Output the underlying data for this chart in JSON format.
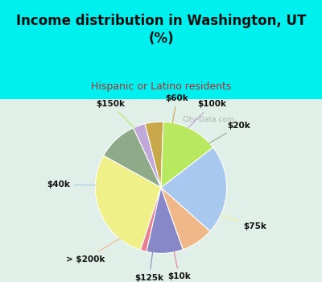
{
  "title": "Income distribution in Washington, UT\n(%)",
  "subtitle": "Hispanic or Latino residents",
  "labels": [
    "$60k",
    "$100k",
    "$20k",
    "$75k",
    "$10k",
    "$125k",
    "> $200k",
    "$40k",
    "$150k"
  ],
  "sizes": [
    4.5,
    3,
    10,
    28,
    1.5,
    9,
    8,
    22,
    14
  ],
  "colors": [
    "#c8a84b",
    "#c0a8d8",
    "#8faa88",
    "#f0f088",
    "#e88090",
    "#8888c8",
    "#f0b888",
    "#a8c8f0",
    "#b8e860"
  ],
  "bg_top": "#00efef",
  "bg_chart_color": "#e0f0e8",
  "title_color": "#111111",
  "subtitle_color": "#b03030",
  "watermark": "City-Data.com",
  "startangle": 88,
  "label_fontsize": 7.5,
  "title_fontsize": 12,
  "subtitle_fontsize": 9
}
